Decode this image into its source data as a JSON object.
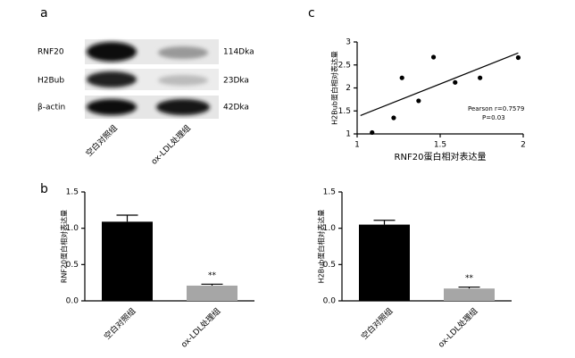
{
  "panel_labels": [
    "a",
    "b",
    "c"
  ],
  "blot": {
    "rows": [
      {
        "protein": "RNF20",
        "size": "114Dka"
      },
      {
        "protein": "H2Bub",
        "size": "23Dka"
      },
      {
        "protein": "β-actin",
        "size": "42Dka"
      }
    ],
    "lanes": [
      "空白对照组",
      "ox-LDL处理组"
    ]
  },
  "chart_data": [
    {
      "type": "bar",
      "y_label": "RNF20蛋白相对表达量",
      "categories": [
        "空白对照组",
        "ox-LDL处理组"
      ],
      "values": [
        1.09,
        0.21
      ],
      "errors": [
        0.09,
        0.02
      ],
      "colors": [
        "#000000",
        "#a6a6a6"
      ],
      "significance": [
        null,
        "**"
      ],
      "ylim": [
        0,
        1.5
      ],
      "yticks": [
        {
          "value": 0,
          "label": "0.0"
        },
        {
          "value": 0.5,
          "label": "0.5"
        },
        {
          "value": 1,
          "label": "1.0"
        },
        {
          "value": 1.5,
          "label": "1.5"
        }
      ]
    },
    {
      "type": "scatter",
      "x_label": "RNF20蛋白相对表达量",
      "y_label": "H2Bub蛋白相对表达量",
      "x": [
        1.09,
        1.22,
        1.27,
        1.37,
        1.46,
        1.59,
        1.74,
        1.97
      ],
      "y": [
        1.03,
        1.35,
        2.22,
        1.72,
        2.67,
        2.12,
        2.22,
        2.66
      ],
      "fit_line": {
        "x": [
          1.02,
          1.97
        ],
        "y": [
          1.4,
          2.76
        ]
      },
      "color": "#000000",
      "annotations": [
        "Pearson r=0.7579",
        "P=0.03"
      ],
      "xlim": [
        1,
        2
      ],
      "xticks": [
        1,
        1.5,
        2
      ],
      "ylim": [
        1,
        3
      ],
      "yticks": [
        1,
        1.5,
        2,
        2.5,
        3
      ]
    },
    {
      "type": "bar",
      "y_label": "H2Bub蛋白相对表达量",
      "categories": [
        "空白对照组",
        "ox-LDL处理组"
      ],
      "values": [
        1.05,
        0.17
      ],
      "errors": [
        0.06,
        0.02
      ],
      "colors": [
        "#000000",
        "#a6a6a6"
      ],
      "significance": [
        null,
        "**"
      ],
      "ylim": [
        0,
        1.5
      ],
      "yticks": [
        {
          "value": 0,
          "label": "0.0"
        },
        {
          "value": 0.5,
          "label": "0.5"
        },
        {
          "value": 1,
          "label": "1.0"
        },
        {
          "value": 1.5,
          "label": "1.5"
        }
      ]
    }
  ]
}
